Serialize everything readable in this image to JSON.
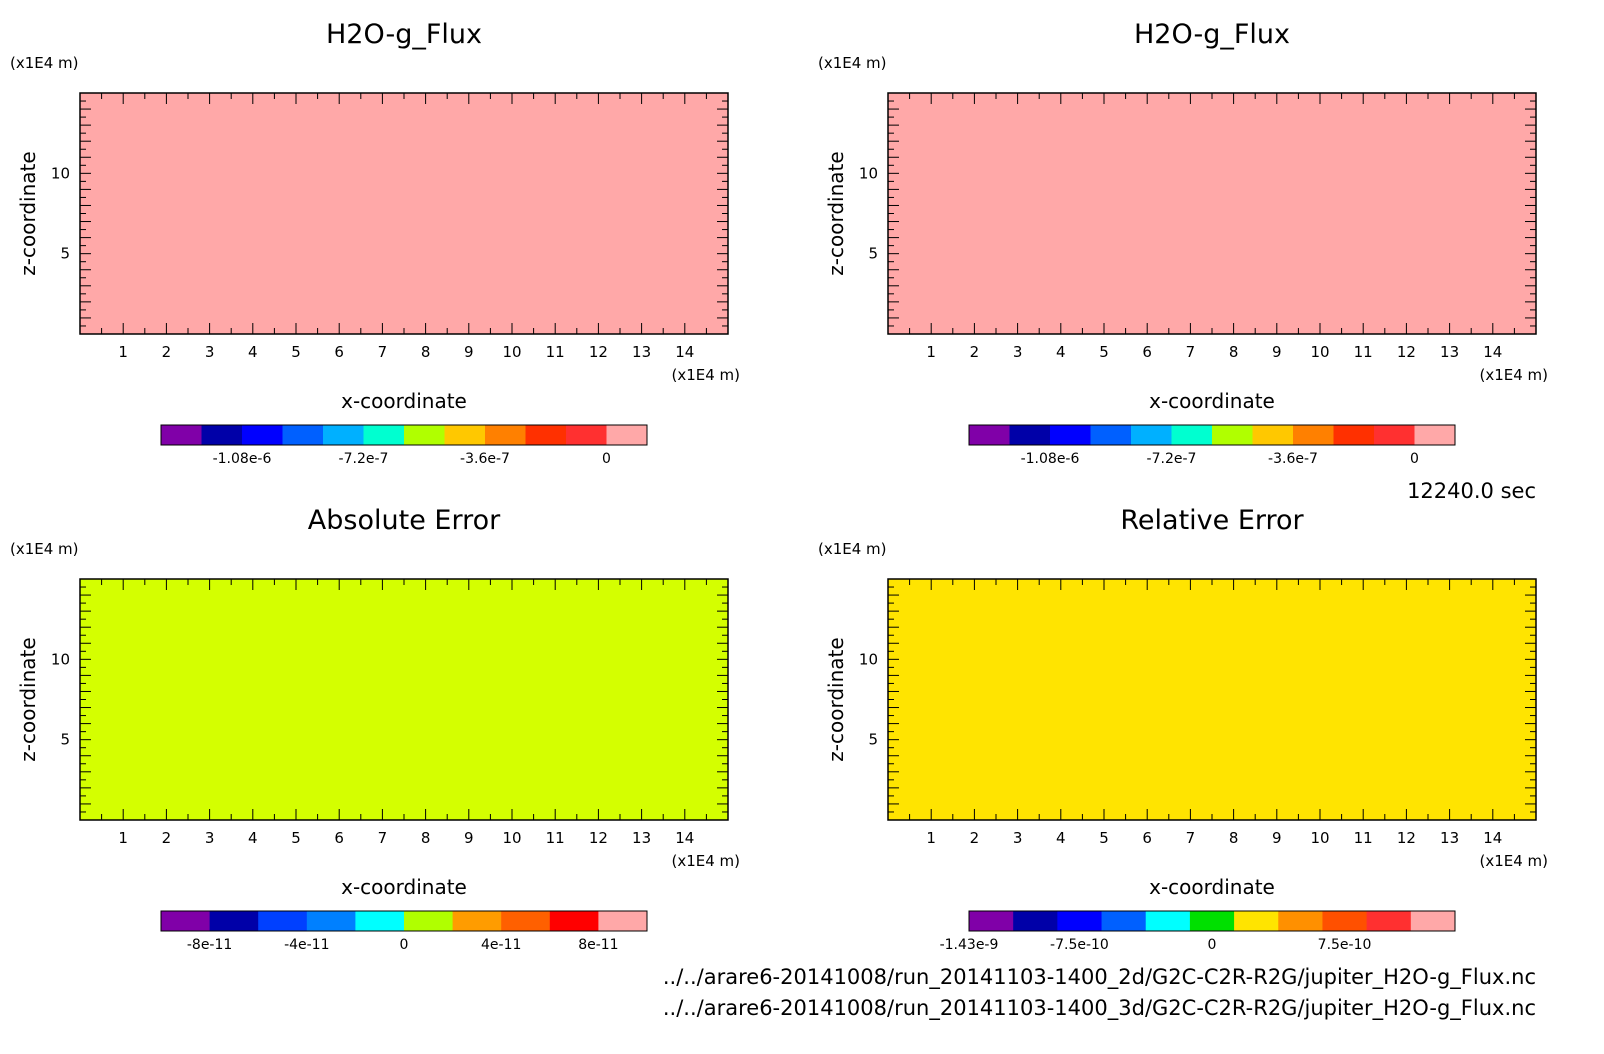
{
  "time_label": "12240.0 sec",
  "file_paths": [
    "../../arare6-20141008/run_20141103-1400_2d/G2C-C2R-R2G/jupiter_H2O-g_Flux.nc",
    "../../arare6-20141008/run_20141103-1400_3d/G2C-C2R-R2G/jupiter_H2O-g_Flux.nc"
  ],
  "chart_data": [
    {
      "type": "heatmap",
      "title": "H2O-g_Flux",
      "xlabel": "x-coordinate",
      "ylabel": "z-coordinate",
      "x_unit": "(x1E4 m)",
      "y_unit": "(x1E4 m)",
      "xlim": [
        0,
        15
      ],
      "ylim": [
        0,
        15
      ],
      "x_ticks": [
        "1",
        "2",
        "3",
        "4",
        "5",
        "6",
        "7",
        "8",
        "9",
        "10",
        "11",
        "12",
        "13",
        "14"
      ],
      "y_ticks": [
        "5",
        "10"
      ],
      "field_color": "#ffa8a8",
      "colorbar": {
        "colors": [
          "#8000a8",
          "#0000a8",
          "#0000ff",
          "#0060ff",
          "#00b0ff",
          "#00ffd0",
          "#b0ff00",
          "#ffc800",
          "#ff8000",
          "#ff3000",
          "#ff3030",
          "#ffa8a8"
        ],
        "tick_labels": [
          "-1.08e-6",
          "-7.2e-7",
          "-3.6e-7",
          "0"
        ],
        "tick_positions": [
          2,
          5,
          8,
          11
        ]
      }
    },
    {
      "type": "heatmap",
      "title": "H2O-g_Flux",
      "xlabel": "x-coordinate",
      "ylabel": "z-coordinate",
      "x_unit": "(x1E4 m)",
      "y_unit": "(x1E4 m)",
      "xlim": [
        0,
        15
      ],
      "ylim": [
        0,
        15
      ],
      "x_ticks": [
        "1",
        "2",
        "3",
        "4",
        "5",
        "6",
        "7",
        "8",
        "9",
        "10",
        "11",
        "12",
        "13",
        "14"
      ],
      "y_ticks": [
        "5",
        "10"
      ],
      "field_color": "#ffa8a8",
      "colorbar": {
        "colors": [
          "#8000a8",
          "#0000a8",
          "#0000ff",
          "#0060ff",
          "#00b0ff",
          "#00ffd0",
          "#b0ff00",
          "#ffc800",
          "#ff8000",
          "#ff3000",
          "#ff3030",
          "#ffa8a8"
        ],
        "tick_labels": [
          "-1.08e-6",
          "-7.2e-7",
          "-3.6e-7",
          "0"
        ],
        "tick_positions": [
          2,
          5,
          8,
          11
        ]
      }
    },
    {
      "type": "heatmap",
      "title": "Absolute Error",
      "xlabel": "x-coordinate",
      "ylabel": "z-coordinate",
      "x_unit": "(x1E4 m)",
      "y_unit": "(x1E4 m)",
      "xlim": [
        0,
        15
      ],
      "ylim": [
        0,
        15
      ],
      "x_ticks": [
        "1",
        "2",
        "3",
        "4",
        "5",
        "6",
        "7",
        "8",
        "9",
        "10",
        "11",
        "12",
        "13",
        "14"
      ],
      "y_ticks": [
        "5",
        "10"
      ],
      "field_color": "#d4ff00",
      "colorbar": {
        "colors": [
          "#8000a8",
          "#0000a8",
          "#0040ff",
          "#0080ff",
          "#00ffff",
          "#b0ff00",
          "#ff9c00",
          "#ff6000",
          "#ff0000",
          "#ffa8a8"
        ],
        "tick_labels": [
          "-8e-11",
          "-4e-11",
          "0",
          "4e-11",
          "8e-11"
        ],
        "tick_positions": [
          1,
          3,
          5,
          7,
          9
        ]
      }
    },
    {
      "type": "heatmap",
      "title": "Relative Error",
      "xlabel": "x-coordinate",
      "ylabel": "z-coordinate",
      "x_unit": "(x1E4 m)",
      "y_unit": "(x1E4 m)",
      "xlim": [
        0,
        15
      ],
      "ylim": [
        0,
        15
      ],
      "x_ticks": [
        "1",
        "2",
        "3",
        "4",
        "5",
        "6",
        "7",
        "8",
        "9",
        "10",
        "11",
        "12",
        "13",
        "14"
      ],
      "y_ticks": [
        "5",
        "10"
      ],
      "field_color": "#ffe400",
      "colorbar": {
        "colors": [
          "#8000a8",
          "#0000a8",
          "#0000ff",
          "#0060ff",
          "#00ffff",
          "#00e000",
          "#ffe400",
          "#ff9000",
          "#ff5000",
          "#ff3030",
          "#ffa8a8"
        ],
        "tick_labels": [
          "-1.43e-9",
          "-7.5e-10",
          "0",
          "7.5e-10"
        ],
        "tick_positions": [
          0,
          2.5,
          5.5,
          8.5
        ]
      }
    }
  ]
}
